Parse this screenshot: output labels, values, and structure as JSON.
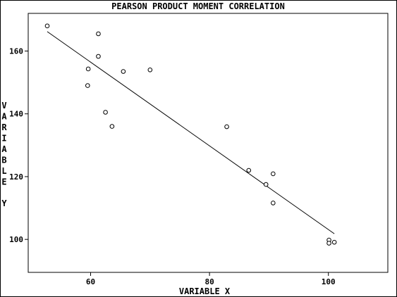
{
  "chart_data": {
    "type": "scatter",
    "title": "PEARSON PRODUCT MOMENT CORRELATION",
    "xlabel": "VARIABLE X",
    "ylabel": "VARIABLE Y",
    "xlim": [
      49.5,
      110
    ],
    "ylim": [
      89.5,
      172
    ],
    "x_ticks": [
      60,
      80,
      100
    ],
    "y_ticks": [
      100,
      120,
      140,
      160
    ],
    "grid": false,
    "points": [
      {
        "x": 52.7,
        "y": 168.0
      },
      {
        "x": 61.3,
        "y": 165.5
      },
      {
        "x": 61.3,
        "y": 158.3
      },
      {
        "x": 59.6,
        "y": 154.3
      },
      {
        "x": 65.5,
        "y": 153.5
      },
      {
        "x": 70.0,
        "y": 154.0
      },
      {
        "x": 59.5,
        "y": 149.0
      },
      {
        "x": 62.5,
        "y": 140.5
      },
      {
        "x": 63.6,
        "y": 136.0
      },
      {
        "x": 82.9,
        "y": 135.9
      },
      {
        "x": 86.6,
        "y": 122.0
      },
      {
        "x": 90.7,
        "y": 120.9
      },
      {
        "x": 89.5,
        "y": 117.5
      },
      {
        "x": 90.7,
        "y": 111.6
      },
      {
        "x": 100.1,
        "y": 99.8
      },
      {
        "x": 100.1,
        "y": 98.8
      },
      {
        "x": 101.0,
        "y": 99.1
      }
    ],
    "fit_line": {
      "x": [
        52.7,
        101.0
      ],
      "y": [
        166.2,
        101.8
      ]
    }
  }
}
